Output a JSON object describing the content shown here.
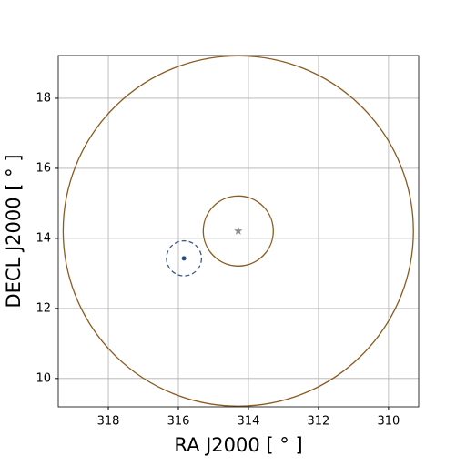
{
  "chart_data": {
    "type": "scatter",
    "xlabel": "RA J2000 [ ° ]",
    "ylabel": "DECL J2000 [ ° ]",
    "xlim": [
      319.43,
      309.14
    ],
    "ylim": [
      9.19,
      19.22
    ],
    "xticks": [
      318,
      316,
      314,
      312,
      310
    ],
    "yticks": [
      10,
      12,
      14,
      16,
      18
    ],
    "grid": true,
    "circles": [
      {
        "x": 314.29,
        "y": 14.21,
        "r": 5,
        "color": "#8b5a1e",
        "style": "solid"
      },
      {
        "x": 314.29,
        "y": 14.21,
        "r": 1,
        "color": "#8b5a1e",
        "style": "solid"
      },
      {
        "x": 315.84,
        "y": 13.43,
        "r": 0.5,
        "color": "#3d5a8a",
        "style": "dashed"
      }
    ],
    "points": [
      {
        "x": 314.29,
        "y": 14.21,
        "marker": "star",
        "color": "#8c8c8c"
      },
      {
        "x": 315.84,
        "y": 13.43,
        "marker": "dot",
        "color": "#2f4f7f"
      }
    ]
  }
}
